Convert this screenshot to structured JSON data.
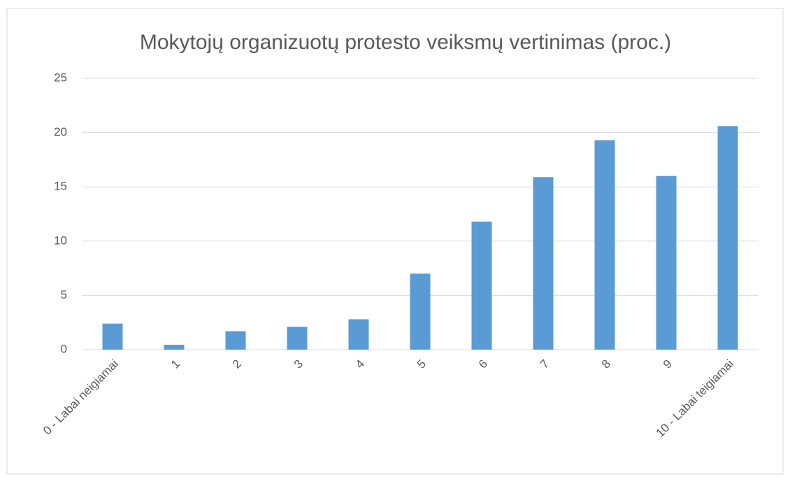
{
  "chart_data": {
    "type": "bar",
    "title": "Mokytojų organizuotų protesto veiksmų vertinimas (proc.)",
    "categories": [
      "0 - Labai neigiamai",
      "1",
      "2",
      "3",
      "4",
      "5",
      "6",
      "7",
      "8",
      "9",
      "10 - Labai teigiamai"
    ],
    "values": [
      2.4,
      0.45,
      1.7,
      2.1,
      2.8,
      7.0,
      11.8,
      15.9,
      19.3,
      16.0,
      20.6
    ],
    "color": "#5b9bd5",
    "ylim": [
      0,
      25
    ],
    "yticks": [
      0,
      5,
      10,
      15,
      20,
      25
    ],
    "grid": true
  }
}
